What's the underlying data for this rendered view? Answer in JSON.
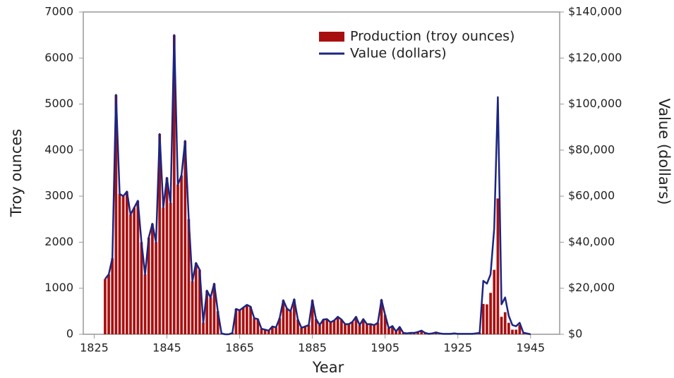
{
  "chart_data": {
    "type": "bar_line",
    "xlabel": "Year",
    "ylabel": "Troy ounces",
    "y2label": "Value (dollars)",
    "x": [
      1828,
      1829,
      1830,
      1831,
      1832,
      1833,
      1834,
      1835,
      1836,
      1837,
      1838,
      1839,
      1840,
      1841,
      1842,
      1843,
      1844,
      1845,
      1846,
      1847,
      1848,
      1849,
      1850,
      1851,
      1852,
      1853,
      1854,
      1855,
      1856,
      1857,
      1858,
      1859,
      1860,
      1861,
      1862,
      1863,
      1864,
      1865,
      1866,
      1867,
      1868,
      1869,
      1870,
      1871,
      1872,
      1873,
      1874,
      1875,
      1876,
      1877,
      1878,
      1879,
      1880,
      1881,
      1882,
      1883,
      1884,
      1885,
      1886,
      1887,
      1888,
      1889,
      1890,
      1891,
      1892,
      1893,
      1894,
      1895,
      1896,
      1897,
      1898,
      1899,
      1900,
      1901,
      1902,
      1903,
      1904,
      1905,
      1906,
      1907,
      1908,
      1909,
      1910,
      1911,
      1912,
      1913,
      1914,
      1915,
      1916,
      1917,
      1918,
      1919,
      1920,
      1921,
      1922,
      1923,
      1924,
      1925,
      1926,
      1927,
      1928,
      1929,
      1930,
      1931,
      1932,
      1933,
      1934,
      1935,
      1936,
      1937,
      1938,
      1939,
      1940,
      1941,
      1942,
      1943,
      1944,
      1945
    ],
    "series": [
      {
        "name": "Production (troy ounces)",
        "color": "#a81010",
        "kind": "bar",
        "values": [
          1200,
          1300,
          1650,
          5200,
          3050,
          3000,
          3100,
          2600,
          2750,
          2900,
          2000,
          1300,
          2100,
          2400,
          2000,
          4350,
          2750,
          3400,
          2850,
          6500,
          3250,
          3450,
          4200,
          2500,
          1150,
          1550,
          1400,
          250,
          950,
          800,
          1100,
          500,
          20,
          0,
          0,
          30,
          550,
          520,
          580,
          640,
          600,
          350,
          330,
          120,
          100,
          80,
          170,
          150,
          350,
          740,
          560,
          500,
          760,
          320,
          140,
          170,
          200,
          740,
          330,
          200,
          320,
          330,
          260,
          300,
          380,
          320,
          220,
          220,
          270,
          380,
          200,
          330,
          220,
          220,
          200,
          250,
          750,
          420,
          130,
          180,
          60,
          160,
          30,
          20,
          30,
          30,
          50,
          80,
          30,
          10,
          20,
          40,
          20,
          10,
          10,
          10,
          20,
          10,
          10,
          10,
          10,
          10,
          20,
          30,
          660,
          650,
          900,
          1400,
          2950,
          380,
          480,
          250,
          100,
          100,
          200,
          20,
          10,
          0
        ]
      },
      {
        "name": "Value (dollars)",
        "color": "#1c2580",
        "kind": "line",
        "axis": "y2",
        "values": [
          24000,
          26000,
          33000,
          104000,
          61000,
          60000,
          62000,
          52000,
          55000,
          58000,
          40000,
          26000,
          42000,
          48000,
          40000,
          87000,
          55000,
          68000,
          57000,
          130000,
          65000,
          69000,
          84000,
          50000,
          23000,
          31000,
          28000,
          5000,
          19000,
          16000,
          22000,
          10000,
          400,
          0,
          0,
          600,
          11000,
          10400,
          11600,
          12800,
          12000,
          7000,
          6600,
          2400,
          2000,
          1600,
          3400,
          3000,
          7000,
          14800,
          11200,
          10000,
          15200,
          6400,
          2800,
          3400,
          4000,
          14800,
          6600,
          4000,
          6400,
          6600,
          5200,
          6000,
          7600,
          6400,
          4400,
          4400,
          5400,
          7600,
          4000,
          6600,
          4400,
          4400,
          4000,
          5000,
          15000,
          8400,
          2600,
          3600,
          1200,
          3200,
          600,
          400,
          600,
          600,
          1000,
          1600,
          600,
          200,
          400,
          800,
          400,
          200,
          200,
          200,
          400,
          200,
          200,
          200,
          200,
          200,
          400,
          600,
          23200,
          22000,
          26000,
          46000,
          103000,
          13000,
          16000,
          8000,
          4000,
          3500,
          5000,
          700,
          350,
          0
        ]
      }
    ],
    "xlim": [
      1822,
      1953
    ],
    "xticks": [
      1825,
      1845,
      1865,
      1885,
      1905,
      1925,
      1945
    ],
    "ylim": [
      0,
      7000
    ],
    "yticks": [
      0,
      1000,
      2000,
      3000,
      4000,
      5000,
      6000,
      7000
    ],
    "y2lim": [
      0,
      140000
    ],
    "y2ticks": [
      {
        "value": 0,
        "label": "$0"
      },
      {
        "value": 20000,
        "label": "$20,000"
      },
      {
        "value": 40000,
        "label": "$40,000"
      },
      {
        "value": 60000,
        "label": "$60,000"
      },
      {
        "value": 80000,
        "label": "$80,000"
      },
      {
        "value": 100000,
        "label": "$100,000"
      },
      {
        "value": 120000,
        "label": "$120,000"
      },
      {
        "value": 140000,
        "label": "$140,000"
      }
    ],
    "grid": false,
    "legend": "upper right"
  }
}
